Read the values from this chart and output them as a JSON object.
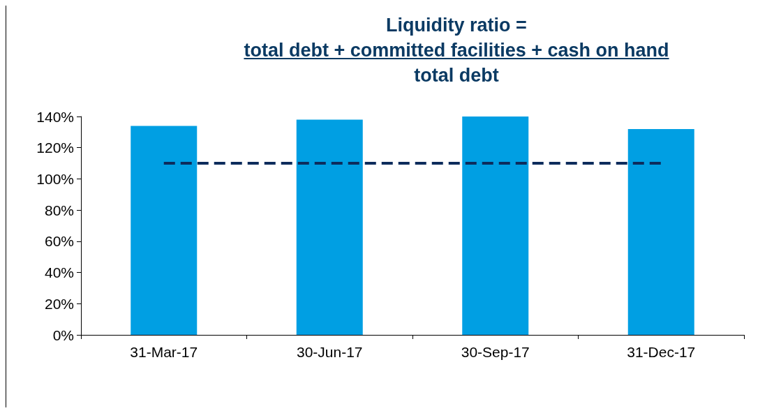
{
  "chart_data": {
    "type": "bar",
    "title": "Liquidity ratio =\ntotal debt + committed facilities + cash on hand\ntotal debt",
    "categories": [
      "31-Mar-17",
      "30-Jun-17",
      "30-Sep-17",
      "31-Dec-17"
    ],
    "series": [
      {
        "color": "#009fe3",
        "values": [
          134,
          138,
          140,
          132
        ]
      },
      {
        "type": "line",
        "color": "#0d2c5c",
        "values": [
          110,
          110,
          110,
          110
        ],
        "line_style": "dashed",
        "marker": "none"
      }
    ],
    "ylim": [
      0,
      140
    ],
    "yticks": [
      {
        "value": 0,
        "label": "0%"
      },
      {
        "value": 20,
        "label": "20%"
      },
      {
        "value": 40,
        "label": "40%"
      },
      {
        "value": 60,
        "label": "60%"
      },
      {
        "value": 80,
        "label": "80%"
      },
      {
        "value": 100,
        "label": "100%"
      },
      {
        "value": 120,
        "label": "120%"
      },
      {
        "value": 140,
        "label": "140%"
      }
    ],
    "grid": false
  }
}
